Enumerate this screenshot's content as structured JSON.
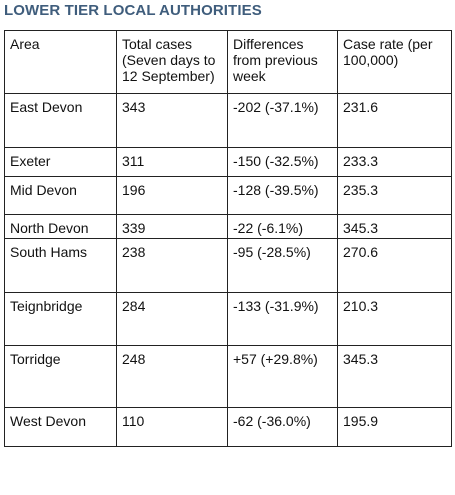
{
  "title": "LOWER TIER LOCAL AUTHORITIES",
  "table": {
    "headers": [
      "Area",
      "Total cases (Seven days to 12 September)",
      "Differences from previous week",
      "Case rate (per 100,000)"
    ],
    "rows": [
      [
        "East Devon",
        "343",
        "-202 (-37.1%)",
        "231.6"
      ],
      [
        "Exeter",
        "311",
        "-150 (-32.5%)",
        "233.3"
      ],
      [
        "Mid Devon",
        "196",
        "-128 (-39.5%)",
        "235.3"
      ],
      [
        "North Devon",
        "339",
        "-22 (-6.1%)",
        "345.3"
      ],
      [
        "South Hams",
        "238",
        "-95 (-28.5%)",
        "270.6"
      ],
      [
        "Teignbridge",
        "284",
        "-133 (-31.9%)",
        "210.3"
      ],
      [
        "Torridge",
        "248",
        "+57 (+29.8%)",
        "345.3"
      ],
      [
        "West Devon",
        "110",
        "-62 (-36.0%)",
        "195.9"
      ]
    ]
  },
  "colors": {
    "title": "#3f5d7c",
    "border": "#222222",
    "text": "#111111"
  }
}
